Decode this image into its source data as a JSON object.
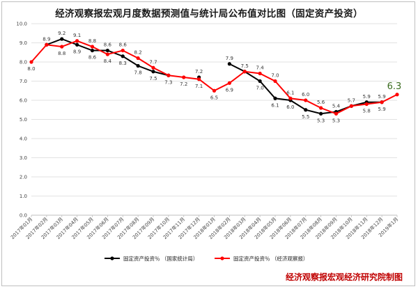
{
  "title": "经济观察报宏观月度数据预测值与统计局公布值对比图（固定资产投资）",
  "watermark": "经济观察报宏观经济研究院制图",
  "colors": {
    "official": "#000000",
    "forecast": "#ff0000",
    "grid": "#d9d9d9",
    "last_label": "#3a6b1f"
  },
  "chart_data": {
    "type": "line",
    "title": "经济观察报宏观月度数据预测值与统计局公布值对比图（固定资产投资）",
    "xlabel": "",
    "ylabel": "",
    "ylim": [
      0.0,
      10.0
    ],
    "y_ticks": [
      "0.0",
      "1.0",
      "2.0",
      "3.0",
      "4.0",
      "5.0",
      "6.0",
      "7.0",
      "8.0",
      "9.0",
      "10.0"
    ],
    "grid": "horizontal",
    "legend_position": "bottom",
    "x": [
      "2017年01月",
      "2017年02月",
      "2017年03月",
      "2017年04月",
      "2017年05月",
      "2017年06月",
      "2017年07月",
      "2017年08月",
      "2017年09月",
      "2017年10月",
      "2017年11月",
      "2017年12月",
      "2018年01月",
      "2018年02月",
      "2018年03月",
      "2018年04月",
      "2018年05月",
      "2018年06月",
      "2018年07月",
      "2018年08月",
      "2018年09月",
      "2018年10月",
      "2018年11月",
      "2018年12月",
      "2019年1月"
    ],
    "series": [
      {
        "name": "固定资产投资％ （国家统计局）",
        "color": "#000000",
        "values": [
          null,
          8.9,
          9.2,
          8.9,
          8.6,
          8.6,
          8.3,
          7.8,
          7.5,
          7.3,
          null,
          7.2,
          null,
          7.9,
          7.5,
          7.0,
          6.1,
          6.0,
          5.5,
          5.3,
          5.4,
          5.7,
          5.9,
          5.9,
          null
        ]
      },
      {
        "name": "固定资产投资％ （经济观察报）",
        "color": "#ff0000",
        "values": [
          8.0,
          8.9,
          8.8,
          9.1,
          8.8,
          8.4,
          8.6,
          8.2,
          7.7,
          7.3,
          7.2,
          7.1,
          6.5,
          6.9,
          7.5,
          7.4,
          7.0,
          6.1,
          6.0,
          5.6,
          5.3,
          5.7,
          5.8,
          5.9,
          6.3
        ]
      }
    ],
    "data_labels": [
      {
        "i": 0,
        "text": "8.0",
        "pos": "below"
      },
      {
        "i": 1,
        "text": "8.9",
        "pos": "above"
      },
      {
        "i": 2,
        "text": "9.2",
        "pos": "above"
      },
      {
        "i": 2,
        "text": "8.8",
        "pos": "below"
      },
      {
        "i": 3,
        "text": "9.1",
        "pos": "above"
      },
      {
        "i": 3,
        "text": "8.9",
        "pos": "below"
      },
      {
        "i": 4,
        "text": "8.8",
        "pos": "above"
      },
      {
        "i": 4,
        "text": "8.6",
        "pos": "below"
      },
      {
        "i": 5,
        "text": "8.6",
        "pos": "above"
      },
      {
        "i": 5,
        "text": "8.4",
        "pos": "below"
      },
      {
        "i": 6,
        "text": "8.6",
        "pos": "above"
      },
      {
        "i": 6,
        "text": "8.3",
        "pos": "below"
      },
      {
        "i": 7,
        "text": "8.2",
        "pos": "above"
      },
      {
        "i": 7,
        "text": "7.8",
        "pos": "below"
      },
      {
        "i": 8,
        "text": "7.7",
        "pos": "above"
      },
      {
        "i": 8,
        "text": "7.5",
        "pos": "below"
      },
      {
        "i": 9,
        "text": "7.3",
        "pos": "below"
      },
      {
        "i": 10,
        "text": "7.2",
        "pos": "below"
      },
      {
        "i": 11,
        "text": "7.2",
        "pos": "above"
      },
      {
        "i": 11,
        "text": "7.1",
        "pos": "below"
      },
      {
        "i": 12,
        "text": "6.5",
        "pos": "below"
      },
      {
        "i": 13,
        "text": "7.9",
        "pos": "above"
      },
      {
        "i": 13,
        "text": "6.9",
        "pos": "below"
      },
      {
        "i": 14,
        "text": "7.5",
        "pos": "above"
      },
      {
        "i": 15,
        "text": "7.4",
        "pos": "above"
      },
      {
        "i": 15,
        "text": "7.0",
        "pos": "below"
      },
      {
        "i": 16,
        "text": "7.0",
        "pos": "above"
      },
      {
        "i": 16,
        "text": "6.1",
        "pos": "below"
      },
      {
        "i": 17,
        "text": "6.1",
        "pos": "above"
      },
      {
        "i": 17,
        "text": "6.0",
        "pos": "below"
      },
      {
        "i": 18,
        "text": "6.0",
        "pos": "above"
      },
      {
        "i": 18,
        "text": "5.5",
        "pos": "below"
      },
      {
        "i": 19,
        "text": "5.6",
        "pos": "above"
      },
      {
        "i": 19,
        "text": "5.3",
        "pos": "below"
      },
      {
        "i": 20,
        "text": "5.4",
        "pos": "above"
      },
      {
        "i": 20,
        "text": "5.3",
        "pos": "below"
      },
      {
        "i": 21,
        "text": "5.7",
        "pos": "above"
      },
      {
        "i": 22,
        "text": "5.9",
        "pos": "above"
      },
      {
        "i": 22,
        "text": "5.8",
        "pos": "below"
      },
      {
        "i": 23,
        "text": "5.9",
        "pos": "above"
      },
      {
        "i": 23,
        "text": "5.9",
        "pos": "below"
      }
    ],
    "last_value_label": {
      "i": 24,
      "text": "6.3"
    }
  }
}
